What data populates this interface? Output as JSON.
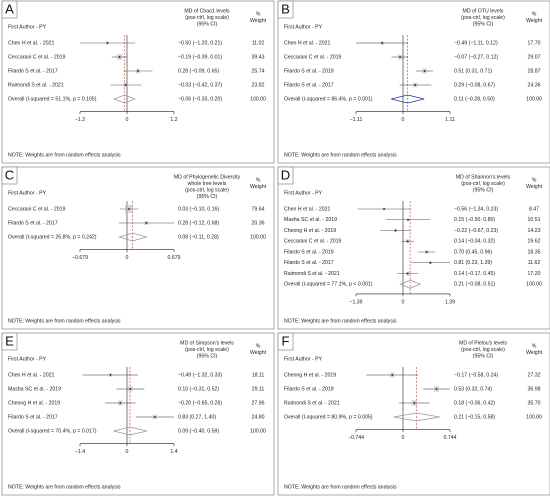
{
  "chart_data": [
    {
      "type": "forest",
      "label": "A",
      "study_header": "First Author - PY",
      "effect_header": [
        "MD of Chao1 levels",
        "(pos-ctrl, log scale)",
        "(95% CI)"
      ],
      "weight_header": [
        "%",
        "Weight"
      ],
      "color": "#555555",
      "diamond_color": "#999999",
      "rows": [
        {
          "study": "Chen H et al. - 2021",
          "md": -0.5,
          "lo": -1.2,
          "hi": 0.21,
          "ci_label": "−0.50 (−1.20, 0.21)",
          "weight": 11.02,
          "weight_label": "11.02"
        },
        {
          "study": "Ceccarani C et al. - 2019",
          "md": -0.19,
          "lo": -0.39,
          "hi": 0.01,
          "ci_label": "−0.19 (−0.39, 0.01)",
          "weight": 39.43,
          "weight_label": "39.43"
        },
        {
          "study": "Filardo S et al. - 2017",
          "md": 0.28,
          "lo": -0.09,
          "hi": 0.65,
          "ci_label": "0.28 (−0.09, 0.65)",
          "weight": 25.74,
          "weight_label": "25.74"
        },
        {
          "study": "Raimondi S et al. - 2021",
          "md": -0.03,
          "lo": -0.42,
          "hi": 0.37,
          "ci_label": "−0.03 (−0.42, 0.37)",
          "weight": 23.82,
          "weight_label": "23.82"
        }
      ],
      "overall": {
        "study": "Overall (I-squared = 51.1%, p = 0.105)",
        "md": -0.06,
        "lo": -0.33,
        "hi": 0.2,
        "ci_label": "−0.06 (−0.33, 0.20)",
        "weight": 100,
        "weight_label": "100.00"
      },
      "note": "NOTE: Weights are from random effects analysis",
      "xlim": [
        -1.2,
        1.2
      ],
      "xticks": [
        {
          "value": -1.2,
          "label": "−1.2"
        },
        0,
        1.2
      ]
    },
    {
      "type": "forest",
      "label": "B",
      "study_header": "First Author - PY",
      "effect_header": [
        "MD of OTU levels",
        "(pos-ctrl, log scale)",
        "(95% CI)"
      ],
      "weight_header": [
        "%",
        "Weight"
      ],
      "color": "#333333",
      "diamond_color": "#1f3a93",
      "rows": [
        {
          "study": "Chen H et al. - 2021",
          "md": -0.49,
          "lo": -1.11,
          "hi": 0.12,
          "ci_label": "−0.49 (−1.11, 0.12)",
          "weight": 17.7,
          "weight_label": "17.70"
        },
        {
          "study": "Ceccarani C et al. - 2019",
          "md": -0.07,
          "lo": -0.27,
          "hi": 0.12,
          "ci_label": "−0.07 (−0.27, 0.12)",
          "weight": 29.07,
          "weight_label": "29.07"
        },
        {
          "study": "Filardo S et al. - 2019",
          "md": 0.51,
          "lo": 0.31,
          "hi": 0.71,
          "ci_label": "0.51 (0.31, 0.71)",
          "weight": 28.87,
          "weight_label": "28.87"
        },
        {
          "study": "Filardo S et al. - 2017",
          "md": 0.29,
          "lo": -0.08,
          "hi": 0.67,
          "ci_label": "0.29 (−0.08, 0.67)",
          "weight": 24.36,
          "weight_label": "24.36"
        }
      ],
      "overall": {
        "study": "Overall (I-squared = 86.4%, p = 0.001)",
        "md": 0.11,
        "lo": -0.28,
        "hi": 0.5,
        "ci_label": "0.11 (−0.28, 0.50)",
        "weight": 100,
        "weight_label": "100.00"
      },
      "note": "NOTE: Weights are from random effects analysis",
      "xlim": [
        -1.11,
        1.11
      ],
      "xticks": [
        {
          "value": -1.11,
          "label": "−1.11"
        },
        0,
        1.11
      ]
    },
    {
      "type": "forest",
      "label": "C",
      "study_header": "First Author - PY",
      "effect_header": [
        "MD of Phylogenetic Diversity",
        "whole tree levels",
        "(pos-ctrl, log scale)",
        "(95% CI)"
      ],
      "weight_header": [
        "%",
        "Weight"
      ],
      "color": "#555555",
      "diamond_color": "#999999",
      "rows": [
        {
          "study": "Ceccarani C et al. - 2019",
          "md": 0.03,
          "lo": -0.1,
          "hi": 0.16,
          "ci_label": "0.03 (−0.10, 0.16)",
          "weight": 79.64,
          "weight_label": "79.64"
        },
        {
          "study": "Filardo S et al. - 2017",
          "md": 0.28,
          "lo": -0.12,
          "hi": 0.68,
          "ci_label": "0.28 (−0.12, 0.68)",
          "weight": 20.36,
          "weight_label": "20.36"
        }
      ],
      "overall": {
        "study": "Overall (I-squared = 26.8%, p = 0.242)",
        "md": 0.08,
        "lo": -0.11,
        "hi": 0.28,
        "ci_label": "0.08 (−0.11, 0.28)",
        "weight": 100,
        "weight_label": "100.00"
      },
      "note": "NOTE: Weights are from random effects analysis",
      "xlim": [
        -0.679,
        0.679
      ],
      "xticks": [
        {
          "value": -0.679,
          "label": "−0.679"
        },
        0,
        0.679
      ]
    },
    {
      "type": "forest",
      "label": "D",
      "study_header": "First Author - PY",
      "effect_header": [
        "MD of Shannon's levels",
        "(pos-ctrl, log scale)",
        "(95% CI)"
      ],
      "weight_header": [
        "%",
        "Weight"
      ],
      "color": "#555555",
      "diamond_color": "#999999",
      "rows": [
        {
          "study": "Chen H et al. - 2021",
          "md": -0.56,
          "lo": -1.34,
          "hi": 0.23,
          "ci_label": "−0.56 (−1.34, 0.23)",
          "weight": 8.47,
          "weight_label": "8.47"
        },
        {
          "study": "Masha SC et al. - 2019",
          "md": 0.15,
          "lo": -0.5,
          "hi": 0.8,
          "ci_label": "0.15 (−0.50, 0.80)",
          "weight": 10.51,
          "weight_label": "10.51"
        },
        {
          "study": "Cheong H et al. - 2019",
          "md": -0.22,
          "lo": -0.67,
          "hi": 0.23,
          "ci_label": "−0.22 (−0.67, 0.23)",
          "weight": 14.23,
          "weight_label": "14.23"
        },
        {
          "study": "Ceccarani C et al. - 2019",
          "md": 0.14,
          "lo": -0.04,
          "hi": 0.32,
          "ci_label": "0.14 (−0.04, 0.32)",
          "weight": 19.62,
          "weight_label": "19.62"
        },
        {
          "study": "Filardo S et al. - 2019",
          "md": 0.7,
          "lo": 0.45,
          "hi": 0.96,
          "ci_label": "0.70 (0.45, 0.96)",
          "weight": 18.35,
          "weight_label": "18.35"
        },
        {
          "study": "Filardo S et al. - 2017",
          "md": 0.81,
          "lo": 0.23,
          "hi": 1.39,
          "ci_label": "0.81 (0.23, 1.39)",
          "weight": 11.62,
          "weight_label": "11.62"
        },
        {
          "study": "Raimondi S et al. - 2021",
          "md": 0.14,
          "lo": -0.17,
          "hi": 0.45,
          "ci_label": "0.14 (−0.17, 0.45)",
          "weight": 17.2,
          "weight_label": "17.20"
        }
      ],
      "overall": {
        "study": "Overall (I-squared = 77.1%, p < 0.001)",
        "md": 0.21,
        "lo": -0.08,
        "hi": 0.51,
        "ci_label": "0.21 (−0.08, 0.51)",
        "weight": 100,
        "weight_label": "100.00"
      },
      "note": "NOTE: Weights are from random effects analysis",
      "xlim": [
        -1.39,
        1.39
      ],
      "xticks": [
        {
          "value": -1.39,
          "label": "−1.39"
        },
        0,
        1.39
      ]
    },
    {
      "type": "forest",
      "label": "E",
      "study_header": "First Author - PY",
      "effect_header": [
        "MD of Simpson's levels",
        "(pos-ctrl, log scale)",
        "(95% CI)"
      ],
      "weight_header": [
        "%",
        "Weight"
      ],
      "color": "#333333",
      "diamond_color": "#999999",
      "rows": [
        {
          "study": "Chen H et al. - 2021",
          "md": -0.49,
          "lo": -1.32,
          "hi": 0.33,
          "ci_label": "−0.49 (−1.32, 0.33)",
          "weight": 18.11,
          "weight_label": "18.11"
        },
        {
          "study": "Masha SC et al. - 2019",
          "md": 0.1,
          "lo": -0.31,
          "hi": 0.52,
          "ci_label": "0.10 (−0.31, 0.52)",
          "weight": 29.11,
          "weight_label": "29.11"
        },
        {
          "study": "Cheong H et al. - 2019",
          "md": -0.2,
          "lo": -0.65,
          "hi": 0.26,
          "ci_label": "−0.20 (−0.65, 0.26)",
          "weight": 27.96,
          "weight_label": "27.96"
        },
        {
          "study": "Filardo S et al. - 2017",
          "md": 0.83,
          "lo": 0.27,
          "hi": 1.4,
          "ci_label": "0.83 (0.27, 1.40)",
          "weight": 24.8,
          "weight_label": "24.80"
        }
      ],
      "overall": {
        "study": "Overall (I-squared = 70.4%, p = 0.017)",
        "md": 0.09,
        "lo": -0.4,
        "hi": 0.59,
        "ci_label": "0.09 (−0.40, 0.59)",
        "weight": 100,
        "weight_label": "100.00"
      },
      "note": "NOTE: Weights are from random effects analysis",
      "xlim": [
        -1.4,
        1.4
      ],
      "xticks": [
        {
          "value": -1.4,
          "label": "−1.4"
        },
        0,
        1.4
      ]
    },
    {
      "type": "forest",
      "label": "F",
      "study_header": "First Author - PY",
      "effect_header": [
        "MD of Pielou's levels",
        "(pos-ctrl, log scale)",
        "(95% CI)"
      ],
      "weight_header": [
        "%",
        "Weight"
      ],
      "color": "#333333",
      "diamond_color": "#999999",
      "rows": [
        {
          "study": "Cheong H et al. - 2019",
          "md": -0.17,
          "lo": -0.58,
          "hi": 0.24,
          "ci_label": "−0.17 (−0.58, 0.24)",
          "weight": 27.32,
          "weight_label": "27.32"
        },
        {
          "study": "Filardo S et al. - 2019",
          "md": 0.53,
          "lo": 0.32,
          "hi": 0.74,
          "ci_label": "0.53 (0.32, 0.74)",
          "weight": 36.98,
          "weight_label": "36.98"
        },
        {
          "study": "Raimondi S et al. - 2021",
          "md": 0.18,
          "lo": -0.06,
          "hi": 0.42,
          "ci_label": "0.18 (−0.06, 0.42)",
          "weight": 35.7,
          "weight_label": "35.70"
        }
      ],
      "overall": {
        "study": "Overall (I-squared = 80.9%, p = 0.005)",
        "md": 0.21,
        "lo": -0.15,
        "hi": 0.58,
        "ci_label": "0.21 (−0.15, 0.58)",
        "weight": 100,
        "weight_label": "100.00"
      },
      "note": "NOTE: Weights are from random effects analysis",
      "xlim": [
        -0.744,
        0.744
      ],
      "xticks": [
        {
          "value": -0.744,
          "label": "−0.744"
        },
        0,
        0.744
      ]
    }
  ]
}
